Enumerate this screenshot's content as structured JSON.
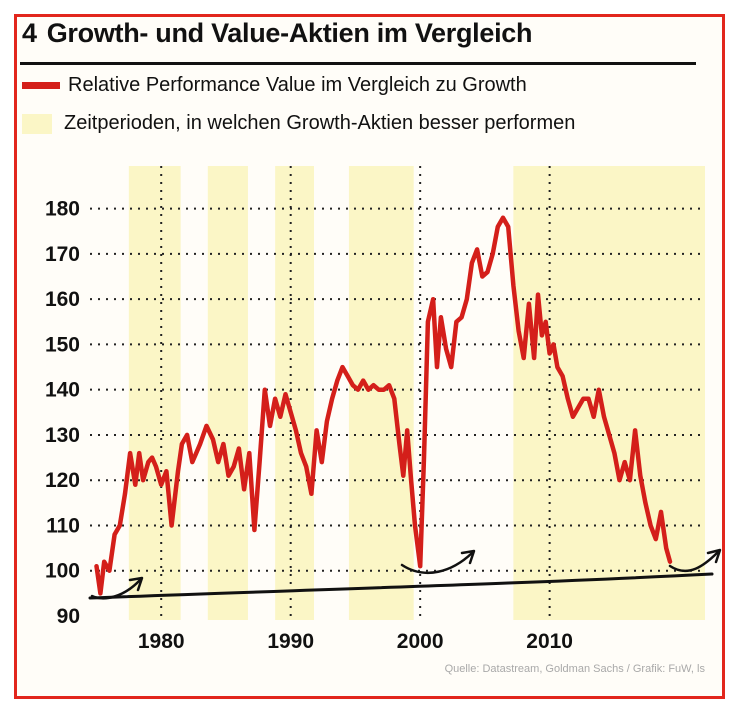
{
  "figure": {
    "number": "4",
    "title": "Growth- und Value-Aktien im Vergleich",
    "source": "Quelle: Datastream, Goldman Sachs / Grafik: FuW, ls"
  },
  "legend": {
    "series_label": "Relative Performance Value im Vergleich zu Growth",
    "shade_label": "Zeitperioden, in welchen Growth-Aktien besser performen"
  },
  "colors": {
    "series": "#d41f1a",
    "shade": "#fbf6c6",
    "frame": "#e2261c",
    "trend": "#111111"
  },
  "chart_data": {
    "type": "line",
    "xlim": [
      1974.5,
      2022
    ],
    "ylim": [
      90,
      185
    ],
    "yticks": [
      90,
      100,
      110,
      120,
      130,
      140,
      150,
      160,
      170,
      180
    ],
    "xticks": [
      1980,
      1990,
      2000,
      2010
    ],
    "grid": true,
    "shaded_periods": [
      [
        1977.5,
        1981.5
      ],
      [
        1983.6,
        1986.7
      ],
      [
        1988.8,
        1991.8
      ],
      [
        1994.5,
        1999.5
      ],
      [
        2007.2,
        2022
      ]
    ],
    "series": [
      {
        "name": "Relative Performance Value im Vergleich zu Growth",
        "x": [
          1975,
          1975.3,
          1975.6,
          1976,
          1976.4,
          1976.8,
          1977.2,
          1977.6,
          1978,
          1978.3,
          1978.6,
          1979,
          1979.3,
          1979.6,
          1980,
          1980.4,
          1980.8,
          1981.3,
          1981.6,
          1982,
          1982.4,
          1982.7,
          1983,
          1983.5,
          1984,
          1984.4,
          1984.8,
          1985.2,
          1985.6,
          1986,
          1986.4,
          1986.8,
          1987.2,
          1987.6,
          1988,
          1988.4,
          1988.8,
          1989.2,
          1989.6,
          1990,
          1990.4,
          1990.8,
          1991.2,
          1991.6,
          1992,
          1992.4,
          1992.8,
          1993.2,
          1993.6,
          1994,
          1994.4,
          1994.8,
          1995.2,
          1995.6,
          1996,
          1996.4,
          1996.8,
          1997.2,
          1997.6,
          1998,
          1998.4,
          1998.7,
          1999,
          1999.3,
          1999.6,
          2000,
          2000.3,
          2000.6,
          2001,
          2001.3,
          2001.6,
          2002,
          2002.4,
          2002.8,
          2003.2,
          2003.6,
          2004,
          2004.4,
          2004.8,
          2005.2,
          2005.6,
          2006,
          2006.4,
          2006.8,
          2007.2,
          2007.6,
          2008,
          2008.4,
          2008.8,
          2009.1,
          2009.4,
          2009.7,
          2010,
          2010.3,
          2010.6,
          2011,
          2011.4,
          2011.8,
          2012.2,
          2012.6,
          2013,
          2013.4,
          2013.8,
          2014.2,
          2014.6,
          2015,
          2015.4,
          2015.8,
          2016.2,
          2016.6,
          2017,
          2017.4,
          2017.8,
          2018.2,
          2018.6,
          2019,
          2019.3
        ],
        "y": [
          101,
          95,
          102,
          100,
          108,
          110,
          117,
          126,
          119,
          126,
          120,
          124,
          125,
          123,
          119,
          122,
          110,
          122,
          128,
          130,
          124,
          126,
          128,
          132,
          129,
          124,
          128,
          121,
          123,
          127,
          118,
          126,
          109,
          124,
          140,
          132,
          138,
          134,
          139,
          135,
          131,
          126,
          123,
          117,
          131,
          124,
          133,
          138,
          142,
          145,
          143,
          141,
          140,
          142,
          140,
          141,
          140,
          140,
          141,
          138,
          128,
          121,
          131,
          120,
          110,
          101,
          125,
          155,
          160,
          145,
          156,
          149,
          145,
          155,
          156,
          160,
          168,
          171,
          165,
          166,
          170,
          176,
          178,
          176,
          163,
          153,
          147,
          159,
          147,
          161,
          152,
          155,
          148,
          150,
          145,
          143,
          138,
          134,
          136,
          138,
          138,
          134,
          140,
          134,
          130,
          126,
          120,
          124,
          120,
          131,
          121,
          115,
          110,
          107,
          113,
          105,
          102
        ]
      }
    ]
  }
}
